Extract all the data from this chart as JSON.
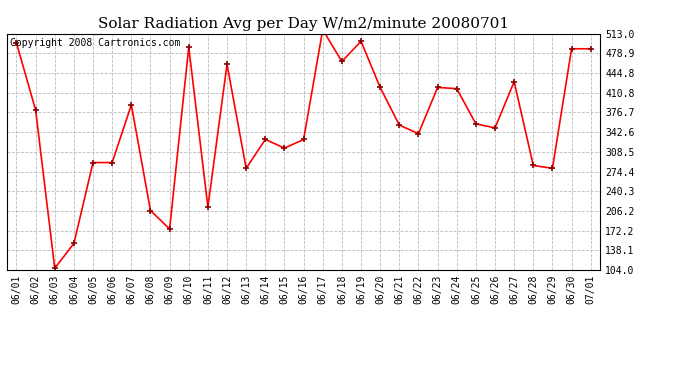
{
  "title": "Solar Radiation Avg per Day W/m2/minute 20080701",
  "copyright_text": "Copyright 2008 Cartronics.com",
  "dates": [
    "06/01",
    "06/02",
    "06/03",
    "06/04",
    "06/05",
    "06/06",
    "06/07",
    "06/08",
    "06/09",
    "06/10",
    "06/11",
    "06/12",
    "06/13",
    "06/14",
    "06/15",
    "06/16",
    "06/17",
    "06/18",
    "06/19",
    "06/20",
    "06/21",
    "06/22",
    "06/23",
    "06/24",
    "06/25",
    "06/26",
    "06/27",
    "06/28",
    "06/29",
    "06/30",
    "07/01"
  ],
  "values": [
    497.0,
    381.0,
    107.0,
    150.0,
    290.0,
    290.0,
    390.0,
    207.0,
    175.0,
    490.0,
    213.0,
    460.0,
    280.0,
    330.0,
    315.0,
    330.0,
    520.0,
    465.0,
    500.0,
    420.0,
    355.0,
    340.0,
    420.0,
    418.0,
    357.0,
    350.0,
    430.0,
    285.0,
    280.0,
    487.0,
    487.0
  ],
  "ylim": [
    104.0,
    513.0
  ],
  "yticks": [
    104.0,
    138.1,
    172.2,
    206.2,
    240.3,
    274.4,
    308.5,
    342.6,
    376.7,
    410.8,
    444.8,
    478.9,
    513.0
  ],
  "line_color": "red",
  "marker": "+",
  "marker_color": "darkred",
  "grid_color": "#bbbbbb",
  "bg_color": "white",
  "title_fontsize": 11,
  "copyright_fontsize": 7,
  "tick_fontsize": 7,
  "ytick_fontsize": 7
}
